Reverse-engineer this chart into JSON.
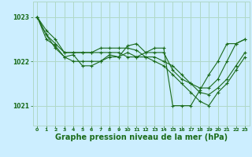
{
  "bg_color": "#cceeff",
  "grid_color": "#b0d8c8",
  "line_color": "#1a6b1a",
  "xlabel": "Graphe pression niveau de la mer (hPa)",
  "xlabel_fontsize": 7.0,
  "xlim": [
    -0.5,
    23.5
  ],
  "ylim": [
    1020.55,
    1023.35
  ],
  "yticks": [
    1021,
    1022,
    1023
  ],
  "xticks": [
    0,
    1,
    2,
    3,
    4,
    5,
    6,
    7,
    8,
    9,
    10,
    11,
    12,
    13,
    14,
    15,
    16,
    17,
    18,
    19,
    20,
    21,
    22,
    23
  ],
  "series": [
    [
      1023.0,
      1022.6,
      1022.3,
      1022.1,
      1022.0,
      1022.0,
      1022.0,
      1022.0,
      1022.1,
      1022.1,
      1022.2,
      1022.1,
      1022.2,
      1022.2,
      1022.2,
      1021.8,
      1021.6,
      1021.5,
      1021.4,
      1021.4,
      1021.6,
      1022.0,
      1022.4,
      1022.5
    ],
    [
      1023.0,
      1022.6,
      1022.4,
      1022.2,
      1022.2,
      1022.2,
      1022.2,
      1022.2,
      1022.2,
      1022.2,
      1022.1,
      1022.1,
      1022.1,
      1022.1,
      1022.0,
      1021.9,
      1021.7,
      1021.5,
      1021.3,
      1021.25,
      1021.4,
      1021.6,
      1021.9,
      1022.2
    ],
    [
      1023.0,
      1022.7,
      1022.5,
      1022.2,
      1022.2,
      1022.2,
      1022.2,
      1022.3,
      1022.3,
      1022.3,
      1022.3,
      1022.25,
      1022.1,
      1022.0,
      1021.9,
      1021.7,
      1021.5,
      1021.3,
      1021.1,
      1021.0,
      1021.3,
      1021.5,
      1021.8,
      1022.1
    ],
    [
      1023.0,
      1022.5,
      1022.35,
      1022.1,
      1022.15,
      1021.9,
      1021.9,
      1022.0,
      1022.15,
      1022.1,
      1022.35,
      1022.4,
      1022.2,
      1022.3,
      1022.3,
      1021.0,
      1021.0,
      1021.0,
      1021.35,
      1021.7,
      1022.0,
      1022.4,
      1022.4,
      1022.5
    ]
  ]
}
